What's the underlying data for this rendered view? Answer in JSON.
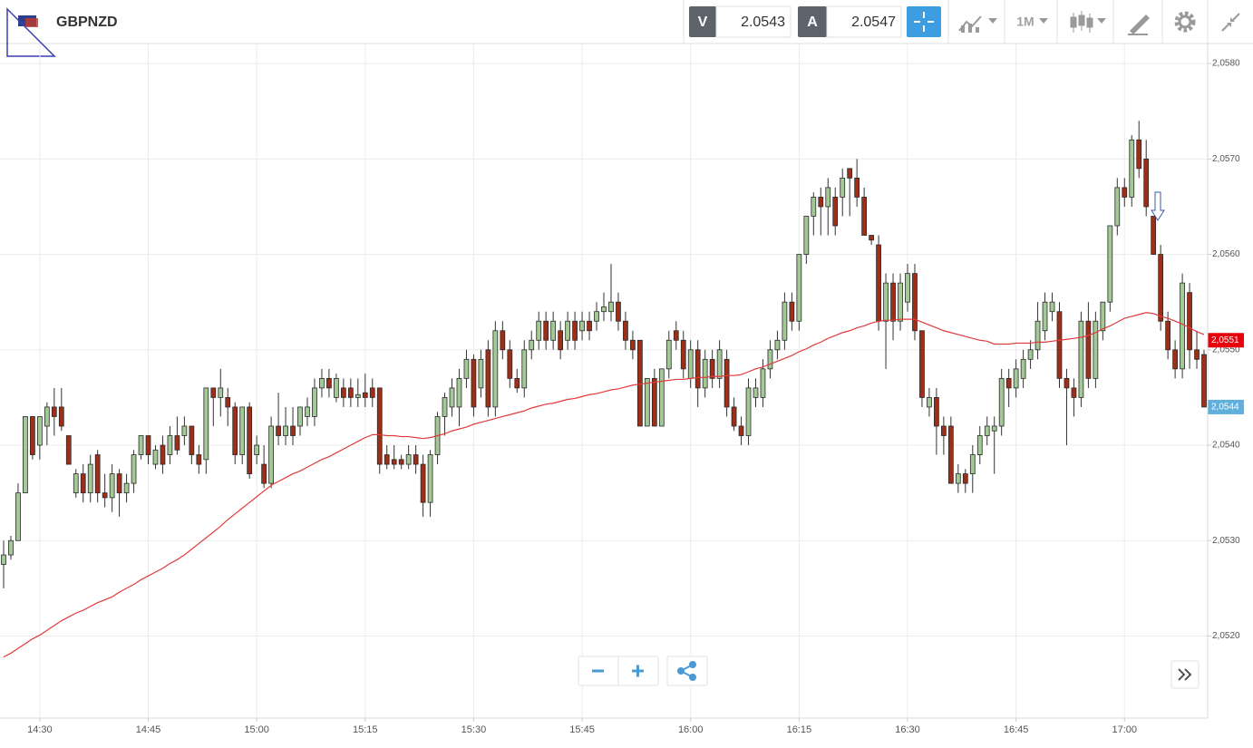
{
  "header": {
    "symbol": "GBPNZD",
    "sell_label": "V",
    "sell_price": 2.0543,
    "buy_label": "A",
    "buy_price": 2.0547,
    "timeframe": "1M"
  },
  "chart_data": {
    "type": "candlestick",
    "categories": [
      null,
      null,
      null,
      null,
      null,
      "14:30",
      null,
      null,
      null,
      null,
      null,
      null,
      null,
      null,
      null,
      null,
      null,
      null,
      null,
      null,
      "14:45",
      null,
      null,
      null,
      null,
      null,
      null,
      null,
      null,
      null,
      null,
      null,
      null,
      null,
      null,
      "15:00",
      null,
      null,
      null,
      null,
      null,
      null,
      null,
      null,
      null,
      null,
      null,
      null,
      null,
      null,
      "15:15",
      null,
      null,
      null,
      null,
      null,
      null,
      null,
      null,
      null,
      null,
      null,
      null,
      null,
      null,
      "15:30",
      null,
      null,
      null,
      null,
      null,
      null,
      null,
      null,
      null,
      null,
      null,
      null,
      null,
      null,
      "15:45",
      null,
      null,
      null,
      null,
      null,
      null,
      null,
      null,
      null,
      null,
      null,
      null,
      null,
      null,
      "16:00",
      null,
      null,
      null,
      null,
      null,
      null,
      null,
      null,
      null,
      null,
      null,
      null,
      null,
      null,
      "16:15",
      null,
      null,
      null,
      null,
      null,
      null,
      null,
      null,
      null,
      null,
      null,
      null,
      null,
      null,
      "16:30",
      null,
      null,
      null,
      null,
      null,
      null,
      null,
      null,
      null,
      null,
      null,
      null,
      null,
      null,
      "16:45",
      null,
      null,
      null,
      null,
      null,
      null,
      null,
      null,
      null,
      null,
      null,
      null,
      null,
      null,
      "17:00",
      null,
      null,
      null,
      null,
      null,
      null,
      null,
      null,
      null,
      null,
      null
    ],
    "open": [
      2.05275,
      2.05285,
      2.053,
      2.0535,
      2.0543,
      2.054,
      2.0542,
      2.0544,
      2.0544,
      2.0541,
      2.0535,
      2.0537,
      2.0535,
      2.0539,
      2.0535,
      2.05345,
      2.0537,
      2.0535,
      2.0536,
      2.0539,
      2.0541,
      2.0538,
      2.054,
      2.0539,
      2.0541,
      2.0541,
      2.0542,
      2.0539,
      2.05385,
      2.0546,
      2.0545,
      2.0545,
      2.0544,
      2.0539,
      2.0544,
      2.0539,
      2.0538,
      2.0536,
      2.0542,
      2.0541,
      2.0542,
      2.0542,
      2.0543,
      2.0543,
      2.0546,
      2.0547,
      2.0545,
      2.0546,
      2.0546,
      2.0545,
      2.05455,
      2.0546,
      2.0546,
      2.0539,
      2.05385,
      2.05385,
      2.0538,
      2.0539,
      2.0538,
      2.0534,
      2.0539,
      2.0543,
      2.0544,
      2.0544,
      2.0547,
      2.0549,
      2.0546,
      2.055,
      2.0544,
      2.0552,
      2.055,
      2.0547,
      2.0546,
      2.055,
      2.0551,
      2.0553,
      2.0551,
      2.0552,
      2.0551,
      2.0553,
      2.0552,
      2.0553,
      2.0553,
      2.0554,
      2.0554,
      2.0555,
      2.0553,
      2.0551,
      2.0551,
      2.0542,
      2.0547,
      2.0542,
      2.0548,
      2.0552,
      2.0551,
      2.0547,
      2.055,
      2.0546,
      2.0549,
      2.0547,
      2.0549,
      2.0544,
      2.0542,
      2.0541,
      2.0545,
      2.0545,
      2.0548,
      2.055,
      2.0551,
      2.0555,
      2.0553,
      2.056,
      2.0564,
      2.0566,
      2.0565,
      2.0566,
      2.0566,
      2.0569,
      2.0568,
      2.0566,
      2.0562,
      2.0561,
      2.0553,
      2.0557,
      2.0553,
      2.0555,
      2.0558,
      2.0552,
      2.0544,
      2.0545,
      2.0542,
      2.0542,
      2.0536,
      2.0537,
      2.0537,
      2.0539,
      2.0541,
      2.05415,
      2.0542,
      2.0547,
      2.0546,
      2.0547,
      2.0549,
      2.055,
      2.0552,
      2.0554,
      2.0554,
      2.0547,
      2.0546,
      2.0545,
      2.0553,
      2.0547,
      2.0552,
      2.0555,
      2.0563,
      2.0567,
      2.0566,
      2.0572,
      2.057,
      2.0564,
      2.056,
      2.0553,
      2.055,
      2.0548,
      2.0556,
      2.055,
      2.05495
    ],
    "high": [
      2.053,
      2.05305,
      2.0536,
      2.0543,
      2.0543,
      2.0543,
      2.05445,
      2.0546,
      2.0546,
      2.0541,
      2.05375,
      2.0538,
      2.0539,
      2.05395,
      2.0537,
      2.0538,
      2.05375,
      2.0537,
      2.05395,
      2.0541,
      2.0541,
      2.054,
      2.0541,
      2.0542,
      2.0543,
      2.0543,
      2.0542,
      2.054,
      2.0546,
      2.0546,
      2.0548,
      2.0546,
      2.05445,
      2.0544,
      2.05445,
      2.0541,
      2.054,
      2.0543,
      2.05455,
      2.0544,
      2.0544,
      2.0544,
      2.0545,
      2.0547,
      2.0548,
      2.0548,
      2.05475,
      2.0547,
      2.0547,
      2.0547,
      2.05475,
      2.0547,
      2.0546,
      2.054,
      2.054,
      2.0539,
      2.054,
      2.054,
      2.0539,
      2.05395,
      2.05435,
      2.05455,
      2.0547,
      2.0548,
      2.055,
      2.05495,
      2.055,
      2.0551,
      2.0553,
      2.0553,
      2.0551,
      2.0548,
      2.0551,
      2.0552,
      2.0554,
      2.0554,
      2.0554,
      2.0553,
      2.0554,
      2.0554,
      2.0554,
      2.0554,
      2.0555,
      2.0556,
      2.0559,
      2.0556,
      2.0554,
      2.0552,
      2.0551,
      2.0547,
      2.0548,
      2.0548,
      2.0552,
      2.0553,
      2.0552,
      2.0551,
      2.0551,
      2.055,
      2.055,
      2.0551,
      2.055,
      2.0545,
      2.0543,
      2.0547,
      2.0547,
      2.0549,
      2.0551,
      2.0552,
      2.0556,
      2.0556,
      2.056,
      2.0564,
      2.05665,
      2.0567,
      2.0568,
      2.0567,
      2.0569,
      2.0569,
      2.057,
      2.0567,
      2.0562,
      2.0562,
      2.0558,
      2.0558,
      2.0558,
      2.0559,
      2.0559,
      2.0552,
      2.0546,
      2.0546,
      2.0543,
      2.0543,
      2.0538,
      2.05375,
      2.054,
      2.0542,
      2.0543,
      2.0543,
      2.0548,
      2.0548,
      2.0549,
      2.055,
      2.0551,
      2.0555,
      2.0556,
      2.0556,
      2.0555,
      2.0548,
      2.0547,
      2.0554,
      2.0555,
      2.0554,
      2.0555,
      2.0563,
      2.0568,
      2.0568,
      2.05725,
      2.0574,
      2.0572,
      2.0564,
      2.0561,
      2.0554,
      2.0551,
      2.0558,
      2.0557,
      2.0552,
      2.055
    ],
    "low": [
      2.0525,
      2.0528,
      2.053,
      2.0535,
      2.05385,
      2.05385,
      2.054,
      2.0541,
      2.05415,
      2.0538,
      2.05345,
      2.0534,
      2.0534,
      2.0534,
      2.05335,
      2.0533,
      2.05325,
      2.0534,
      2.0535,
      2.05385,
      2.0538,
      2.05375,
      2.0537,
      2.0538,
      2.0539,
      2.054,
      2.0538,
      2.0537,
      2.0537,
      2.0542,
      2.0543,
      2.0542,
      2.0538,
      2.0538,
      2.05365,
      2.0538,
      2.05355,
      2.05355,
      2.054,
      2.054,
      2.054,
      2.0541,
      2.0542,
      2.0542,
      2.0545,
      2.0545,
      2.05445,
      2.0544,
      2.0544,
      2.0544,
      2.0544,
      2.0544,
      2.0537,
      2.05375,
      2.05375,
      2.05375,
      2.05375,
      2.0537,
      2.05325,
      2.05325,
      2.0538,
      2.0541,
      2.0543,
      2.0542,
      2.0546,
      2.0543,
      2.0545,
      2.0543,
      2.0543,
      2.0549,
      2.0546,
      2.05455,
      2.0545,
      2.0549,
      2.055,
      2.055,
      2.055,
      2.0549,
      2.055,
      2.055,
      2.0551,
      2.0551,
      2.0552,
      2.0553,
      2.0553,
      2.0552,
      2.055,
      2.0549,
      2.0542,
      2.0542,
      2.0542,
      2.0542,
      2.0547,
      2.055,
      2.0547,
      2.0546,
      2.0544,
      2.0545,
      2.0546,
      2.0546,
      2.0543,
      2.05415,
      2.054,
      2.054,
      2.0544,
      2.0544,
      2.0547,
      2.0549,
      2.055,
      2.0552,
      2.0552,
      2.0559,
      2.0562,
      2.0562,
      2.0562,
      2.0562,
      2.0564,
      2.0564,
      2.0565,
      2.0562,
      2.0561,
      2.0552,
      2.0548,
      2.0551,
      2.0552,
      2.0554,
      2.0551,
      2.0544,
      2.0543,
      2.0539,
      2.0539,
      2.0536,
      2.0535,
      2.0535,
      2.0535,
      2.0538,
      2.054,
      2.0537,
      2.0541,
      2.0544,
      2.0545,
      2.0546,
      2.0548,
      2.0549,
      2.0551,
      2.0553,
      2.0546,
      2.054,
      2.0543,
      2.0544,
      2.0546,
      2.0546,
      2.0551,
      2.0554,
      2.0562,
      2.0565,
      2.0565,
      2.0568,
      2.0564,
      2.056,
      2.0552,
      2.0549,
      2.0547,
      2.0547,
      2.0548,
      2.0548,
      2.0544
    ],
    "close": [
      2.05285,
      2.053,
      2.0535,
      2.0543,
      2.0539,
      2.0543,
      2.0544,
      2.0543,
      2.0542,
      2.0538,
      2.0537,
      2.0535,
      2.0538,
      2.0535,
      2.05345,
      2.0537,
      2.0535,
      2.0536,
      2.0539,
      2.0541,
      2.0539,
      2.05395,
      2.0538,
      2.0541,
      2.05395,
      2.0542,
      2.0539,
      2.0538,
      2.0546,
      2.0545,
      2.0546,
      2.0544,
      2.0539,
      2.0544,
      2.0537,
      2.054,
      2.0536,
      2.0542,
      2.0541,
      2.0542,
      2.0541,
      2.0544,
      2.0544,
      2.0546,
      2.0547,
      2.0546,
      2.0547,
      2.0545,
      2.0545,
      2.05453,
      2.0545,
      2.0545,
      2.0538,
      2.0538,
      2.0538,
      2.0538,
      2.0539,
      2.0538,
      2.0534,
      2.0539,
      2.0543,
      2.0545,
      2.0546,
      2.0547,
      2.0549,
      2.0544,
      2.0549,
      2.0544,
      2.0552,
      2.055,
      2.0547,
      2.0546,
      2.055,
      2.0551,
      2.0553,
      2.0551,
      2.0553,
      2.055,
      2.0553,
      2.0551,
      2.0553,
      2.0552,
      2.0554,
      2.05545,
      2.0555,
      2.0553,
      2.0551,
      2.055,
      2.0542,
      2.0547,
      2.0542,
      2.0548,
      2.0551,
      2.0551,
      2.0548,
      2.055,
      2.0546,
      2.0549,
      2.0547,
      2.055,
      2.0544,
      2.0542,
      2.0541,
      2.0546,
      2.0546,
      2.0548,
      2.055,
      2.0551,
      2.0555,
      2.0553,
      2.056,
      2.0564,
      2.0566,
      2.0565,
      2.0567,
      2.0563,
      2.0568,
      2.0568,
      2.0566,
      2.0562,
      2.05615,
      2.0553,
      2.0557,
      2.0553,
      2.0557,
      2.0558,
      2.0552,
      2.0545,
      2.0545,
      2.0542,
      2.0541,
      2.0536,
      2.0537,
      2.0536,
      2.0539,
      2.0541,
      2.0542,
      2.0542,
      2.0547,
      2.0546,
      2.0548,
      2.0549,
      2.055,
      2.0553,
      2.0555,
      2.0555,
      2.0547,
      2.0546,
      2.0545,
      2.0553,
      2.0547,
      2.0553,
      2.0555,
      2.0563,
      2.0567,
      2.0566,
      2.0572,
      2.0569,
      2.0565,
      2.056,
      2.0553,
      2.055,
      2.0548,
      2.0557,
      2.055,
      2.0549,
      2.0544
    ],
    "up_color": "#a3c996",
    "down_color": "#9e2e17",
    "series": [
      {
        "type": "line",
        "color": "#e23a3a",
        "values": [
          2.05178,
          2.05182,
          2.05187,
          2.05192,
          2.05197,
          2.05201,
          2.05206,
          2.05211,
          2.05216,
          2.0522,
          2.05224,
          2.05227,
          2.05231,
          2.05235,
          2.05238,
          2.05241,
          2.05246,
          2.0525,
          2.05254,
          2.05259,
          2.05263,
          2.05267,
          2.05271,
          2.05276,
          2.0528,
          2.05285,
          2.05291,
          2.05297,
          2.05303,
          2.05309,
          2.05315,
          2.05322,
          2.05328,
          2.05334,
          2.0534,
          2.05346,
          2.05352,
          2.05358,
          2.05362,
          2.05366,
          2.0537,
          2.05373,
          2.05377,
          2.05381,
          2.05385,
          2.05388,
          2.05392,
          2.05396,
          2.054,
          2.05404,
          2.05408,
          2.05411,
          2.05411,
          2.0541,
          2.0541,
          2.05409,
          2.05409,
          2.05408,
          2.05407,
          2.05408,
          2.0541,
          2.05412,
          2.05415,
          2.05417,
          2.05419,
          2.05422,
          2.05424,
          2.05426,
          2.05428,
          2.0543,
          2.05432,
          2.05434,
          2.05436,
          2.05439,
          2.05441,
          2.05443,
          2.05444,
          2.05446,
          2.05448,
          2.05449,
          2.05451,
          2.05453,
          2.05454,
          2.05456,
          2.05458,
          2.05459,
          2.05461,
          2.05463,
          2.05464,
          2.05465,
          2.05466,
          2.05467,
          2.05468,
          2.05469,
          2.05469,
          2.0547,
          2.05471,
          2.05471,
          2.05472,
          2.05472,
          2.05473,
          2.05473,
          2.05474,
          2.05477,
          2.0548,
          2.05482,
          2.05485,
          2.05488,
          2.05491,
          2.05494,
          2.05498,
          2.05501,
          2.05505,
          2.05508,
          2.05512,
          2.05515,
          2.05518,
          2.0552,
          2.05523,
          2.05525,
          2.05528,
          2.0553,
          2.05531,
          2.05531,
          2.05532,
          2.05532,
          2.05532,
          2.05529,
          2.05526,
          2.05523,
          2.0552,
          2.05518,
          2.05516,
          2.05514,
          2.05512,
          2.0551,
          2.05509,
          2.05506,
          2.05506,
          2.05506,
          2.05507,
          2.05507,
          2.05507,
          2.05508,
          2.05508,
          2.05509,
          2.0551,
          2.05511,
          2.05512,
          2.05513,
          2.05515,
          2.05518,
          2.05522,
          2.05525,
          2.05529,
          2.05533,
          2.05535,
          2.05537,
          2.05539,
          2.05538,
          2.05535,
          2.05533,
          2.0553,
          2.05527,
          2.05523,
          2.05519,
          2.05516
        ]
      }
    ],
    "price_markers": [
      {
        "value": 2.0551,
        "label": "2,0551",
        "color": "#e8000b"
      },
      {
        "value": 2.0544,
        "label": "2,0544",
        "color": "#5fb0dc"
      }
    ],
    "ylim": [
      2.05114,
      2.05821
    ],
    "yticks": [
      {
        "value": 2.052,
        "label": "2,0520"
      },
      {
        "value": 2.053,
        "label": "2,0530"
      },
      {
        "value": 2.054,
        "label": "2,0540"
      },
      {
        "value": 2.055,
        "label": "2,0550"
      },
      {
        "value": 2.056,
        "label": "2,0560"
      },
      {
        "value": 2.057,
        "label": "2,0570"
      },
      {
        "value": 2.058,
        "label": "2,0580"
      }
    ],
    "grid": true
  }
}
